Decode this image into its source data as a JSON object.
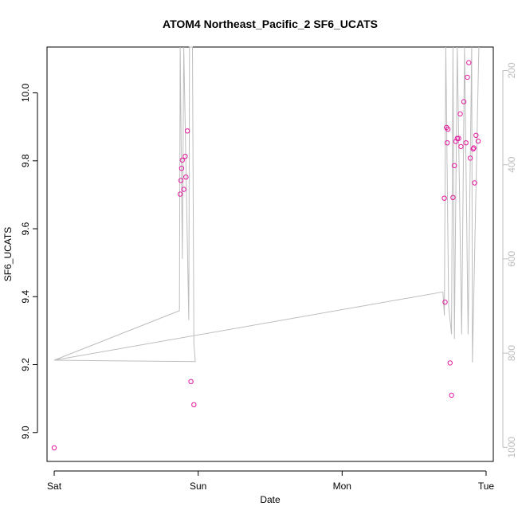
{
  "chart_data": {
    "type": "scatter",
    "title": "ATOM4 Northeast_Pacific_2 SF6_UCATS",
    "xlabel": "Date",
    "ylabel": "SF6_UCATS",
    "x_ticks": [
      "Sat",
      "Sun",
      "Mon",
      "Tue"
    ],
    "x_range_days": [
      -0.05,
      3.05
    ],
    "ylim": [
      8.915,
      10.135
    ],
    "y_ticks": [
      9.0,
      9.2,
      9.4,
      9.6,
      9.8,
      10.0
    ],
    "y_tick_labels": [
      "9.0",
      "9.2",
      "9.4",
      "9.6",
      "9.8",
      "10.0"
    ],
    "right_axis": {
      "ylim_reversed": [
        1030,
        150
      ],
      "ticks": [
        200,
        400,
        600,
        800,
        1000
      ],
      "tick_labels": [
        "200",
        "400",
        "600",
        "800",
        "1000"
      ],
      "color": "#bdbdbd"
    },
    "point_color": "#e5199e",
    "line_color": "#bdbdbd",
    "grid": false,
    "legend": "none",
    "series": [
      {
        "kind": "points",
        "x": [
          0.0,
          0.875,
          0.88,
          0.885,
          0.89,
          0.9,
          0.91,
          0.915,
          0.925,
          0.95,
          0.97,
          2.71,
          2.715,
          2.725,
          2.73,
          2.735,
          2.75,
          2.76,
          2.77,
          2.78,
          2.79,
          2.8,
          2.81,
          2.82,
          2.825,
          2.845,
          2.86,
          2.87,
          2.88,
          2.89,
          2.91,
          2.915,
          2.92,
          2.93,
          2.945
        ],
        "y": [
          8.955,
          9.702,
          9.742,
          9.778,
          9.802,
          9.716,
          9.813,
          9.752,
          9.888,
          9.15,
          9.082,
          9.69,
          9.384,
          9.898,
          9.853,
          9.893,
          9.205,
          9.11,
          9.692,
          9.786,
          9.857,
          9.866,
          9.866,
          9.938,
          9.842,
          9.974,
          9.853,
          10.046,
          10.089,
          9.808,
          9.835,
          9.838,
          9.735,
          9.875,
          9.858
        ]
      },
      {
        "kind": "line",
        "axis": "right",
        "x": [
          0.0,
          0.98,
          0.97,
          0.96,
          0.94,
          0.935,
          0.9,
          0.89,
          0.875,
          0.87,
          0.0,
          2.7,
          2.71,
          2.72,
          2.74,
          2.76,
          2.77,
          2.78,
          2.8,
          2.83,
          2.85,
          2.875,
          2.9,
          2.905,
          2.95
        ],
        "y": [
          815,
          818,
          780,
          150,
          150,
          730,
          150,
          600,
          150,
          710,
          815,
          670,
          720,
          150,
          700,
          760,
          150,
          770,
          150,
          760,
          150,
          760,
          150,
          820,
          150
        ]
      }
    ]
  }
}
